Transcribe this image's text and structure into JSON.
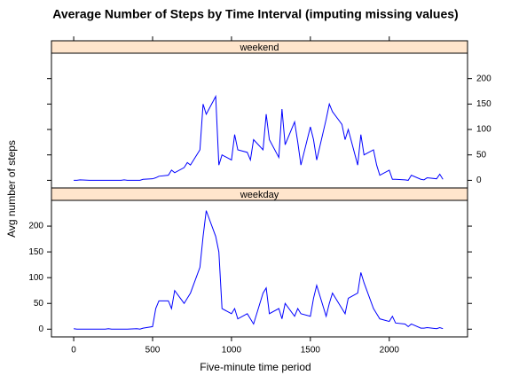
{
  "chart_data": {
    "type": "line",
    "title": "Average Number of Steps by Time Interval (imputing missing values)",
    "x_label": "Five-minute time period",
    "y_label": "Avg number of steps",
    "x": [
      0,
      20,
      40,
      100,
      120,
      140,
      200,
      220,
      240,
      300,
      320,
      340,
      400,
      420,
      440,
      500,
      520,
      540,
      600,
      620,
      640,
      700,
      720,
      740,
      800,
      820,
      840,
      900,
      920,
      940,
      1000,
      1020,
      1040,
      1100,
      1120,
      1140,
      1200,
      1220,
      1240,
      1300,
      1320,
      1340,
      1400,
      1420,
      1440,
      1500,
      1520,
      1540,
      1600,
      1620,
      1640,
      1700,
      1720,
      1740,
      1800,
      1820,
      1840,
      1900,
      1920,
      1940,
      2000,
      2020,
      2040,
      2100,
      2120,
      2140,
      2200,
      2220,
      2240,
      2300,
      2320,
      2340
    ],
    "series": [
      {
        "name": "weekend",
        "color": "#0000ff",
        "values": [
          0,
          0,
          1,
          0,
          0,
          0,
          0,
          0,
          0,
          0,
          1,
          0,
          0,
          0,
          2,
          3,
          5,
          8,
          10,
          20,
          15,
          25,
          35,
          30,
          60,
          150,
          130,
          165,
          30,
          50,
          40,
          90,
          60,
          55,
          40,
          80,
          60,
          130,
          80,
          45,
          140,
          70,
          115,
          75,
          30,
          105,
          80,
          40,
          120,
          150,
          135,
          110,
          80,
          100,
          30,
          90,
          50,
          60,
          30,
          10,
          20,
          2,
          2,
          1,
          0,
          10,
          2,
          1,
          5,
          3,
          12,
          2
        ]
      },
      {
        "name": "weekday",
        "color": "#0000ff",
        "values": [
          1,
          0,
          0,
          0,
          0,
          0,
          0,
          1,
          0,
          0,
          0,
          0,
          1,
          0,
          2,
          5,
          40,
          55,
          55,
          40,
          75,
          50,
          60,
          70,
          120,
          180,
          230,
          180,
          150,
          40,
          30,
          40,
          20,
          30,
          20,
          10,
          70,
          80,
          30,
          40,
          20,
          50,
          25,
          40,
          30,
          25,
          60,
          85,
          25,
          50,
          70,
          40,
          30,
          60,
          70,
          110,
          90,
          40,
          30,
          20,
          15,
          25,
          12,
          10,
          5,
          10,
          2,
          2,
          3,
          1,
          3,
          1
        ]
      }
    ],
    "xlim": [
      -141,
      2496
    ],
    "xticks": [
      0,
      500,
      1000,
      1500,
      2000
    ],
    "ylim": [
      -15,
      250
    ],
    "yticks": [
      0,
      50,
      100,
      150,
      200
    ],
    "strip_color": "#ffe5cc"
  }
}
